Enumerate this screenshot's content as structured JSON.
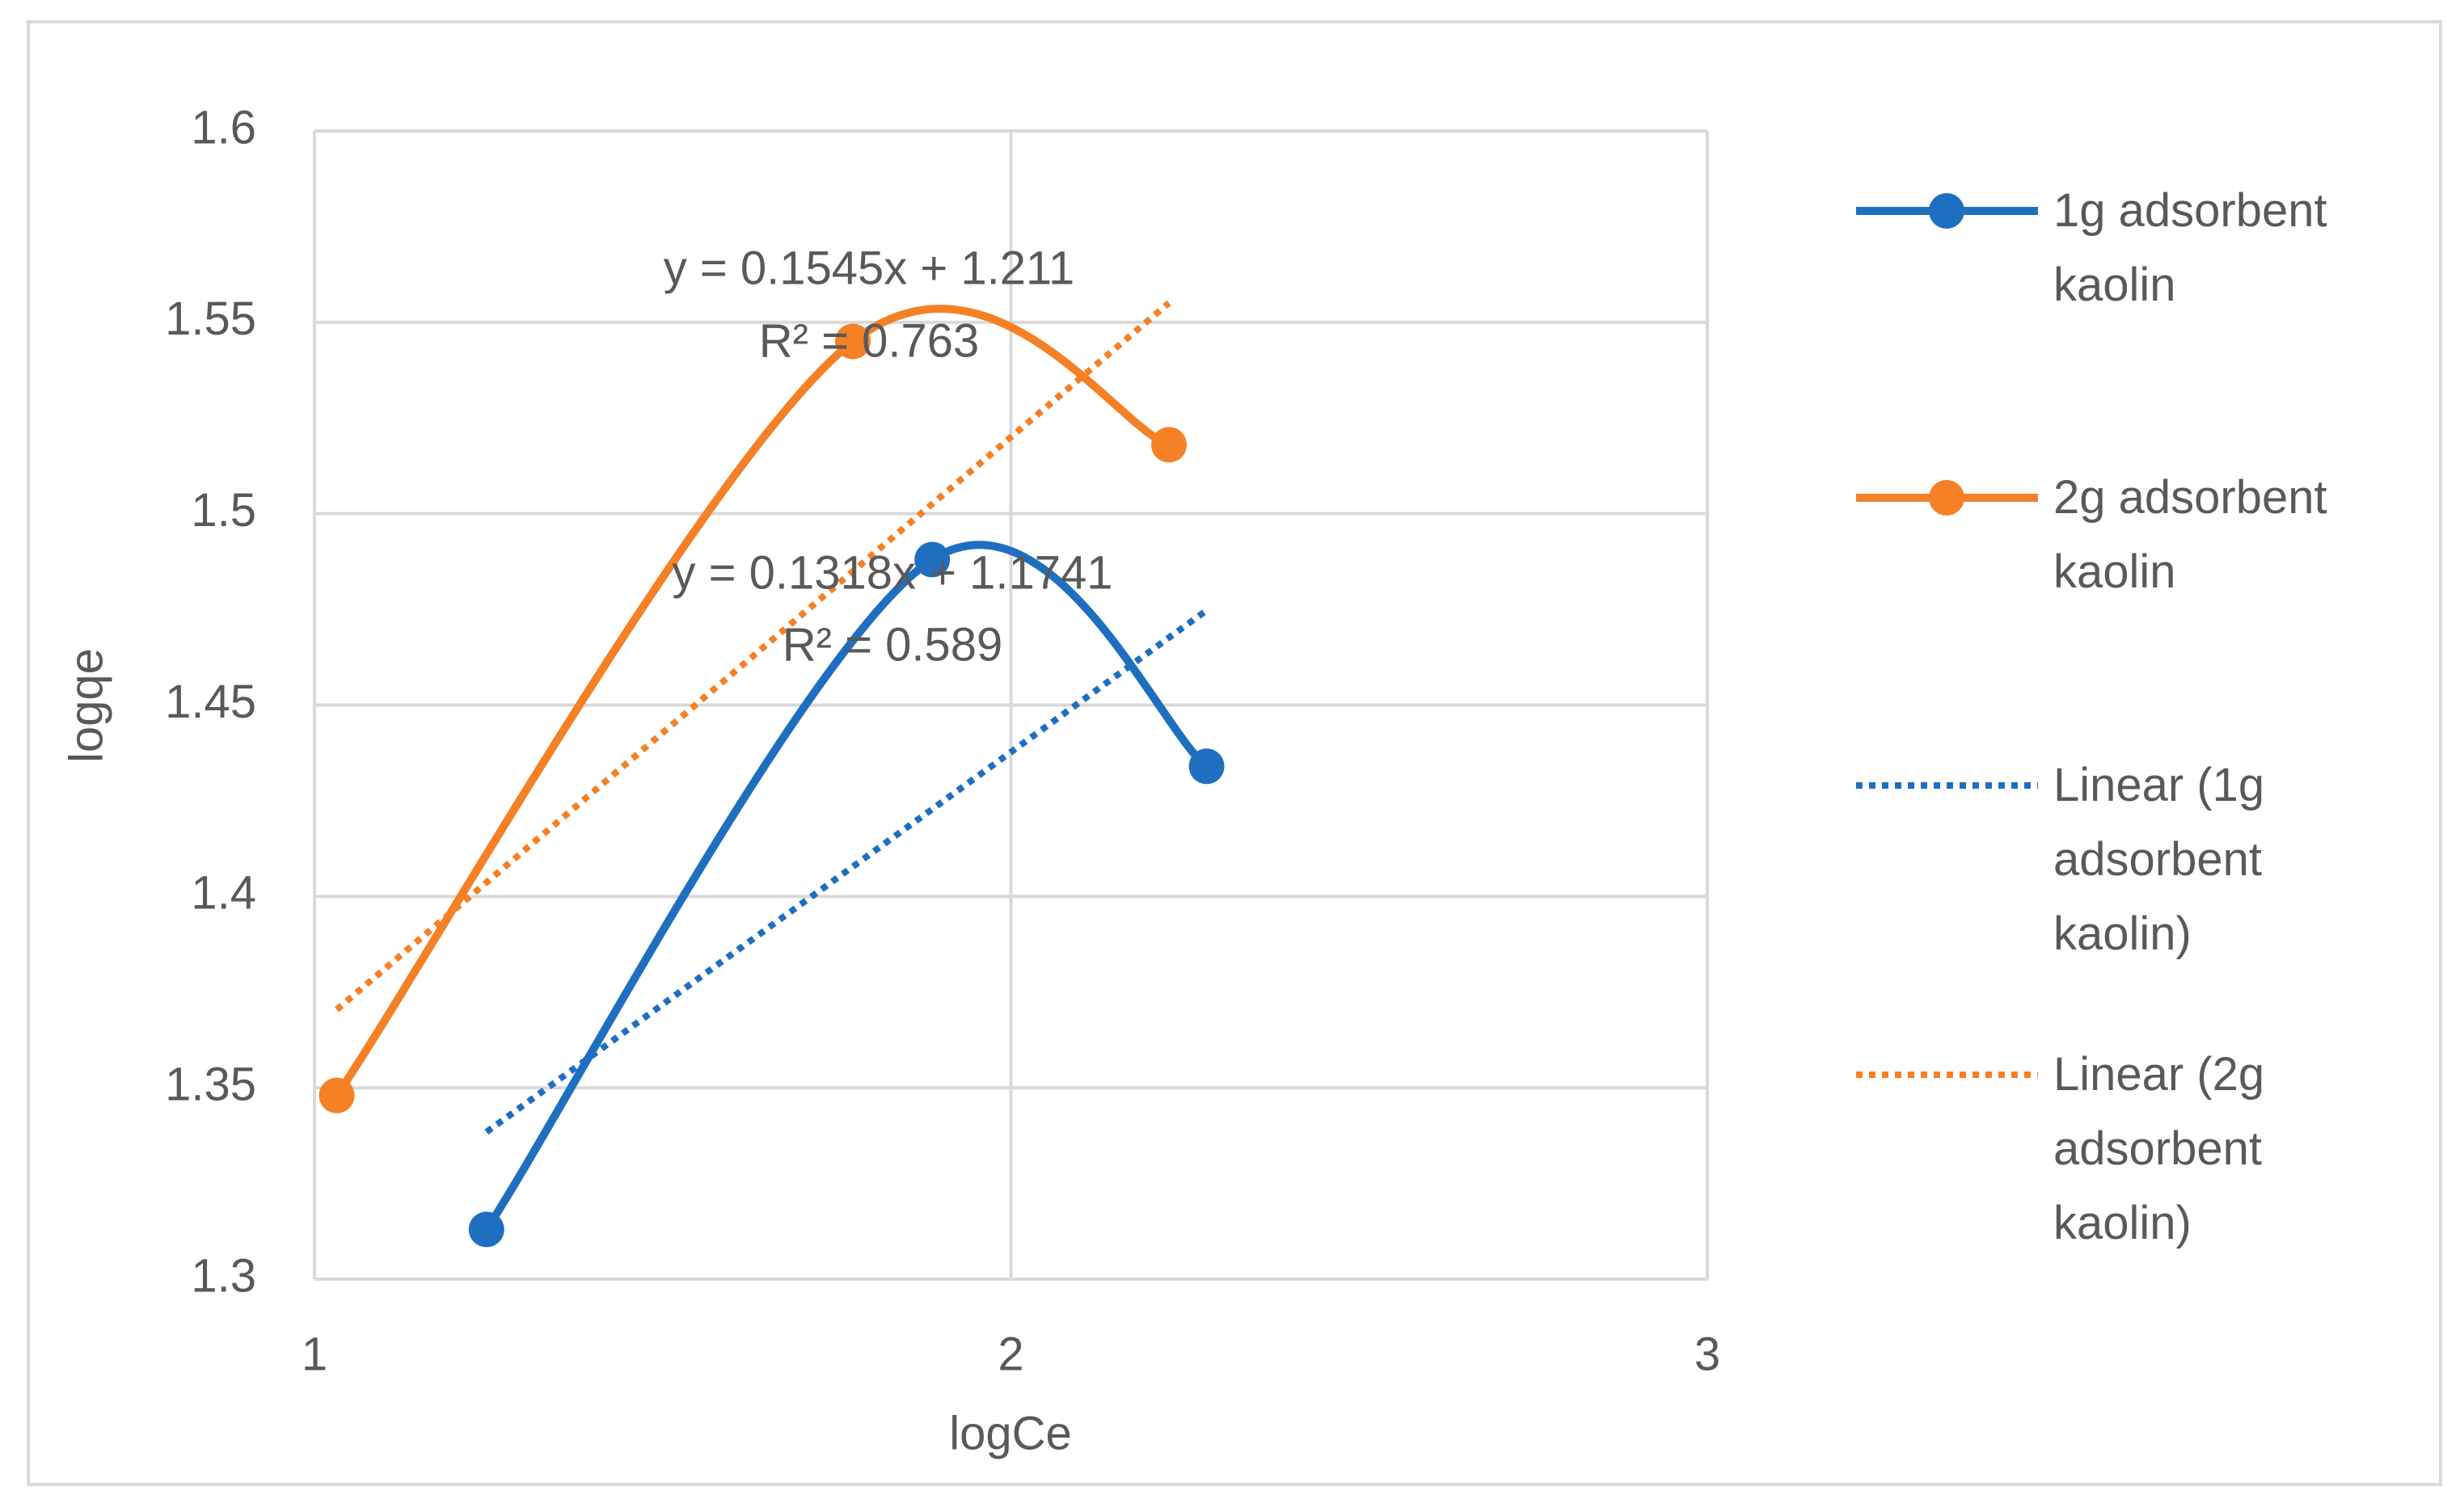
{
  "chart_data": {
    "type": "line",
    "smooth": true,
    "xlabel": "logCe",
    "ylabel": "logqe",
    "xlim": [
      1,
      3
    ],
    "xticks": [
      1,
      2,
      3
    ],
    "ylim": [
      1.3,
      1.6
    ],
    "yticks": [
      1.3,
      1.35,
      1.4,
      1.45,
      1.5,
      1.55,
      1.6
    ],
    "grid": true,
    "legend": "right",
    "series": [
      {
        "name": "1g adsorbent kaolin",
        "color": "#1f6fc0",
        "x": [
          1.247,
          1.887,
          2.281
        ],
        "values": [
          1.313,
          1.488,
          1.434
        ],
        "trendline": {
          "name": "Linear (1g adsorbent kaolin)",
          "slope": 0.1318,
          "intercept": 1.1741,
          "equation": "y = 0.1318x + 1.1741",
          "r2_label": "R² = 0.589"
        }
      },
      {
        "name": "2g adsorbent kaolin",
        "color": "#f58025",
        "x": [
          1.032,
          1.773,
          2.227
        ],
        "values": [
          1.348,
          1.545,
          1.518
        ],
        "trendline": {
          "name": "Linear (2g adsorbent kaolin)",
          "slope": 0.1545,
          "intercept": 1.211,
          "equation": "y = 0.1545x + 1.211",
          "r2_label": "R² = 0.763"
        }
      }
    ]
  }
}
